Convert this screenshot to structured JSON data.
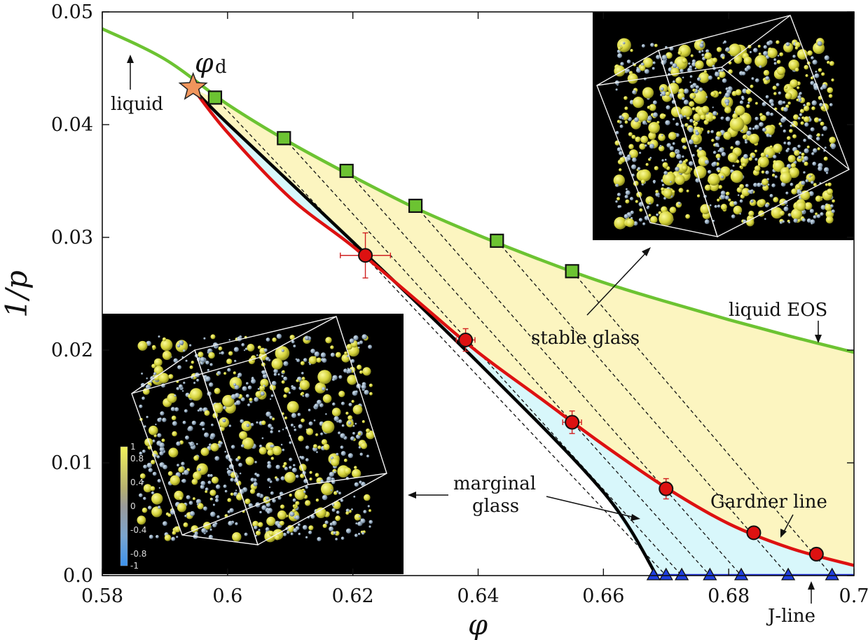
{
  "chart_data": {
    "type": "line",
    "xlabel": "φ",
    "ylabel": "1/p",
    "xlim": [
      0.58,
      0.7
    ],
    "ylim": [
      0.0,
      0.05
    ],
    "x_ticks": [
      "0.58",
      "0.6",
      "0.62",
      "0.64",
      "0.66",
      "0.68",
      "0.7"
    ],
    "y_ticks": [
      "0.0",
      "0.01",
      "0.02",
      "0.03",
      "0.04",
      "0.05"
    ],
    "grid": false,
    "colors": {
      "liquid": "#6cc332",
      "gardner": "#dd1111",
      "glass_boundary": "#000000",
      "jline": "#1f2fd8",
      "stable_fill": "#fcf5c0",
      "marginal_fill": "#d8f7fb",
      "star": "#f0955c",
      "square": "#6cc332",
      "circle": "#dd1111",
      "triangle": "#1f3fe0"
    },
    "series": [
      {
        "name": "liquid EOS",
        "type": "line",
        "points": [
          [
            0.58,
            0.0485
          ],
          [
            0.59,
            0.0458
          ],
          [
            0.6,
            0.0418
          ],
          [
            0.61,
            0.0384
          ],
          [
            0.62,
            0.0354
          ],
          [
            0.63,
            0.0326
          ],
          [
            0.64,
            0.0302
          ],
          [
            0.65,
            0.028
          ],
          [
            0.66,
            0.026
          ],
          [
            0.67,
            0.0243
          ],
          [
            0.68,
            0.0227
          ],
          [
            0.69,
            0.0212
          ],
          [
            0.7,
            0.0198
          ]
        ]
      },
      {
        "name": "Gardner line",
        "type": "line",
        "points": [
          [
            0.5945,
            0.0432
          ],
          [
            0.6,
            0.0393
          ],
          [
            0.61,
            0.0335
          ],
          [
            0.62,
            0.0292
          ],
          [
            0.63,
            0.0245
          ],
          [
            0.64,
            0.0198
          ],
          [
            0.65,
            0.0157
          ],
          [
            0.66,
            0.0116
          ],
          [
            0.67,
            0.0078
          ],
          [
            0.68,
            0.0046
          ],
          [
            0.69,
            0.0024
          ],
          [
            0.7,
            0.0009
          ]
        ]
      },
      {
        "type": "line",
        "points": [
          [
            0.5945,
            0.0432
          ],
          [
            0.6,
            0.0401
          ],
          [
            0.62,
            0.0296
          ],
          [
            0.64,
            0.0189
          ],
          [
            0.66,
            0.0074
          ],
          [
            0.6685,
            0.0
          ]
        ]
      },
      {
        "name": "J-line",
        "type": "line",
        "points": [
          [
            0.6675,
            0.0
          ],
          [
            0.7,
            0.0
          ]
        ]
      }
    ],
    "markers": {
      "star": [
        [
          0.5945,
          0.0433
        ]
      ],
      "squares": [
        [
          0.598,
          0.0424
        ],
        [
          0.609,
          0.0388
        ],
        [
          0.619,
          0.0359
        ],
        [
          0.63,
          0.0328
        ],
        [
          0.643,
          0.0297
        ],
        [
          0.655,
          0.027
        ]
      ],
      "circles": [
        {
          "x": 0.622,
          "y": 0.0284,
          "xerr": 0.004,
          "yerr": 0.002
        },
        {
          "x": 0.638,
          "y": 0.0209,
          "xerr": 0.0015,
          "yerr": 0.001
        },
        {
          "x": 0.655,
          "y": 0.0136,
          "xerr": 0.0015,
          "yerr": 0.001
        },
        {
          "x": 0.67,
          "y": 0.0077,
          "xerr": 0.001,
          "yerr": 0.0009
        },
        {
          "x": 0.684,
          "y": 0.0038,
          "xerr": 0,
          "yerr": 0
        },
        {
          "x": 0.694,
          "y": 0.0019,
          "xerr": 0,
          "yerr": 0
        }
      ],
      "triangles": [
        [
          0.668,
          0.0
        ],
        [
          0.67,
          0.0
        ],
        [
          0.6725,
          0.0
        ],
        [
          0.677,
          0.0
        ],
        [
          0.682,
          0.0
        ],
        [
          0.6895,
          0.0
        ],
        [
          0.6965,
          0.0
        ]
      ]
    },
    "dashed_lines": [
      [
        [
          0.598,
          0.0424
        ],
        [
          0.67,
          0.0
        ]
      ],
      [
        [
          0.609,
          0.0388
        ],
        [
          0.6725,
          0.0
        ]
      ],
      [
        [
          0.619,
          0.0359
        ],
        [
          0.677,
          0.0
        ]
      ],
      [
        [
          0.63,
          0.0328
        ],
        [
          0.682,
          0.0
        ]
      ],
      [
        [
          0.643,
          0.0297
        ],
        [
          0.6895,
          0.0
        ]
      ],
      [
        [
          0.655,
          0.027
        ],
        [
          0.6965,
          0.0
        ]
      ]
    ],
    "annotations": {
      "phi_d": "φ",
      "phi_d_sub": "d",
      "liquid": "liquid",
      "liquid_eos": "liquid EOS",
      "stable_glass": "stable glass",
      "marginal_line1": "marginal",
      "marginal_line2": "glass",
      "gardner_line": "Gardner line",
      "j_line": "J-line"
    },
    "insets": {
      "colorbar_labels": [
        "1",
        "0.8",
        "0.4",
        "0",
        "-0.4",
        "-0.8",
        "-1"
      ]
    }
  }
}
